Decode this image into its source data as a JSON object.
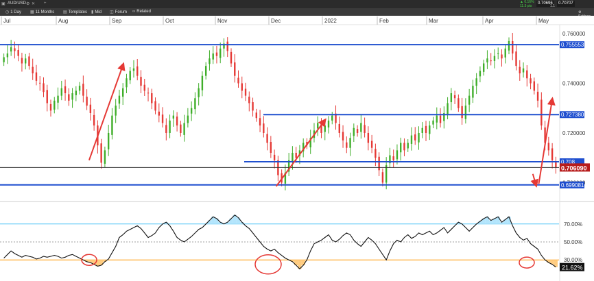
{
  "header": {
    "symbol": "AUD/USD",
    "toolbar": [
      {
        "icon": "clock-icon",
        "label": "1 Day"
      },
      {
        "icon": "calendar-icon",
        "label": "11 Months"
      },
      {
        "icon": "grid-icon",
        "label": "Templates"
      },
      {
        "icon": "candles-icon",
        "label": "Mid"
      },
      {
        "icon": "chat-icon",
        "label": "Forum"
      },
      {
        "icon": "link-icon",
        "label": "Related"
      }
    ],
    "change_pct": "0.16%",
    "change_pips": "11.5 pts",
    "bid": "0.70696",
    "ask": "0.70707",
    "spread": "1.1",
    "settings_label": "Settings"
  },
  "chart_data": [
    {
      "type": "candlestick",
      "x_ticks": [
        "Jul",
        "Aug",
        "Sep",
        "Oct",
        "Nov",
        "Dec",
        "2022",
        "Feb",
        "Mar",
        "Apr",
        "May"
      ],
      "y_ticks": [
        "0.760000",
        "0.740000",
        "0.720000",
        "0.700000"
      ],
      "ylim": [
        0.6935,
        0.7625
      ],
      "current_price": "0.706090",
      "horizontal_levels": [
        {
          "label": "0.755553",
          "value": 0.75555
        },
        {
          "label": "0.727380",
          "value": 0.72738
        },
        {
          "label": "0.708",
          "value": 0.7084
        },
        {
          "label": "0.699081",
          "value": 0.69908
        }
      ],
      "close_line": 0.70609,
      "closes": [
        0.7505,
        0.752,
        0.7545,
        0.753,
        0.751,
        0.748,
        0.75,
        0.747,
        0.744,
        0.741,
        0.74,
        0.7365,
        0.732,
        0.729,
        0.733,
        0.735,
        0.738,
        0.736,
        0.733,
        0.736,
        0.737,
        0.739,
        0.735,
        0.731,
        0.728,
        0.723,
        0.715,
        0.708,
        0.713,
        0.72,
        0.727,
        0.731,
        0.735,
        0.738,
        0.742,
        0.745,
        0.746,
        0.743,
        0.739,
        0.737,
        0.736,
        0.732,
        0.729,
        0.727,
        0.724,
        0.72,
        0.725,
        0.727,
        0.723,
        0.72,
        0.724,
        0.727,
        0.73,
        0.734,
        0.738,
        0.743,
        0.747,
        0.75,
        0.752,
        0.751,
        0.754,
        0.756,
        0.753,
        0.748,
        0.743,
        0.74,
        0.737,
        0.735,
        0.732,
        0.729,
        0.726,
        0.723,
        0.72,
        0.716,
        0.712,
        0.709,
        0.703,
        0.7,
        0.704,
        0.709,
        0.712,
        0.71,
        0.713,
        0.716,
        0.715,
        0.718,
        0.721,
        0.724,
        0.72,
        0.723,
        0.725,
        0.727,
        0.724,
        0.72,
        0.717,
        0.714,
        0.718,
        0.722,
        0.72,
        0.724,
        0.72,
        0.716,
        0.714,
        0.71,
        0.705,
        0.7,
        0.707,
        0.711,
        0.709,
        0.713,
        0.716,
        0.713,
        0.716,
        0.719,
        0.717,
        0.72,
        0.722,
        0.72,
        0.723,
        0.725,
        0.727,
        0.724,
        0.728,
        0.732,
        0.736,
        0.734,
        0.73,
        0.726,
        0.731,
        0.735,
        0.739,
        0.742,
        0.745,
        0.748,
        0.75,
        0.749,
        0.751,
        0.752,
        0.75,
        0.754,
        0.757,
        0.752,
        0.747,
        0.744,
        0.746,
        0.742,
        0.74,
        0.737,
        0.733,
        0.723,
        0.716,
        0.713,
        0.709,
        0.706
      ],
      "annotations": [
        {
          "type": "arrow",
          "from": [
            0.15,
            0.709
          ],
          "to": [
            0.208,
            0.748
          ]
        },
        {
          "type": "arrow",
          "from": [
            0.465,
            0.6985
          ],
          "to": [
            0.548,
            0.7255
          ]
        },
        {
          "type": "arrow",
          "from": [
            0.897,
            0.7035
          ],
          "to": [
            0.903,
            0.6985
          ]
        },
        {
          "type": "arrow",
          "from": [
            0.907,
            0.6995
          ],
          "to": [
            0.93,
            0.734
          ]
        }
      ]
    },
    {
      "type": "line",
      "name": "RSI",
      "y_ticks": [
        "70.00%",
        "50.00%",
        "30.00%"
      ],
      "ylim": [
        8,
        92
      ],
      "levels": [
        70,
        50,
        30
      ],
      "current_label": "21.62%",
      "values": [
        32,
        36,
        40,
        37,
        35,
        33,
        35,
        34,
        33,
        31,
        32,
        34,
        33,
        34,
        35,
        34,
        32,
        33,
        35,
        36,
        34,
        32,
        30,
        28,
        27,
        25,
        23,
        24,
        28,
        31,
        38,
        45,
        55,
        58,
        62,
        64,
        66,
        68,
        65,
        60,
        55,
        57,
        60,
        66,
        70,
        72,
        68,
        62,
        55,
        52,
        50,
        53,
        56,
        60,
        64,
        66,
        70,
        74,
        78,
        76,
        72,
        70,
        72,
        76,
        80,
        77,
        72,
        68,
        65,
        60,
        55,
        50,
        45,
        42,
        40,
        42,
        38,
        35,
        32,
        30,
        28,
        24,
        20,
        24,
        30,
        40,
        48,
        50,
        52,
        55,
        58,
        52,
        50,
        53,
        57,
        60,
        58,
        52,
        48,
        45,
        50,
        55,
        52,
        48,
        42,
        36,
        30,
        40,
        48,
        52,
        50,
        55,
        58,
        54,
        56,
        60,
        58,
        60,
        62,
        58,
        60,
        63,
        66,
        60,
        64,
        68,
        72,
        70,
        66,
        62,
        66,
        70,
        73,
        76,
        78,
        74,
        76,
        78,
        72,
        75,
        78,
        68,
        60,
        55,
        52,
        54,
        48,
        45,
        42,
        35,
        30,
        27,
        25,
        22
      ]
    }
  ]
}
